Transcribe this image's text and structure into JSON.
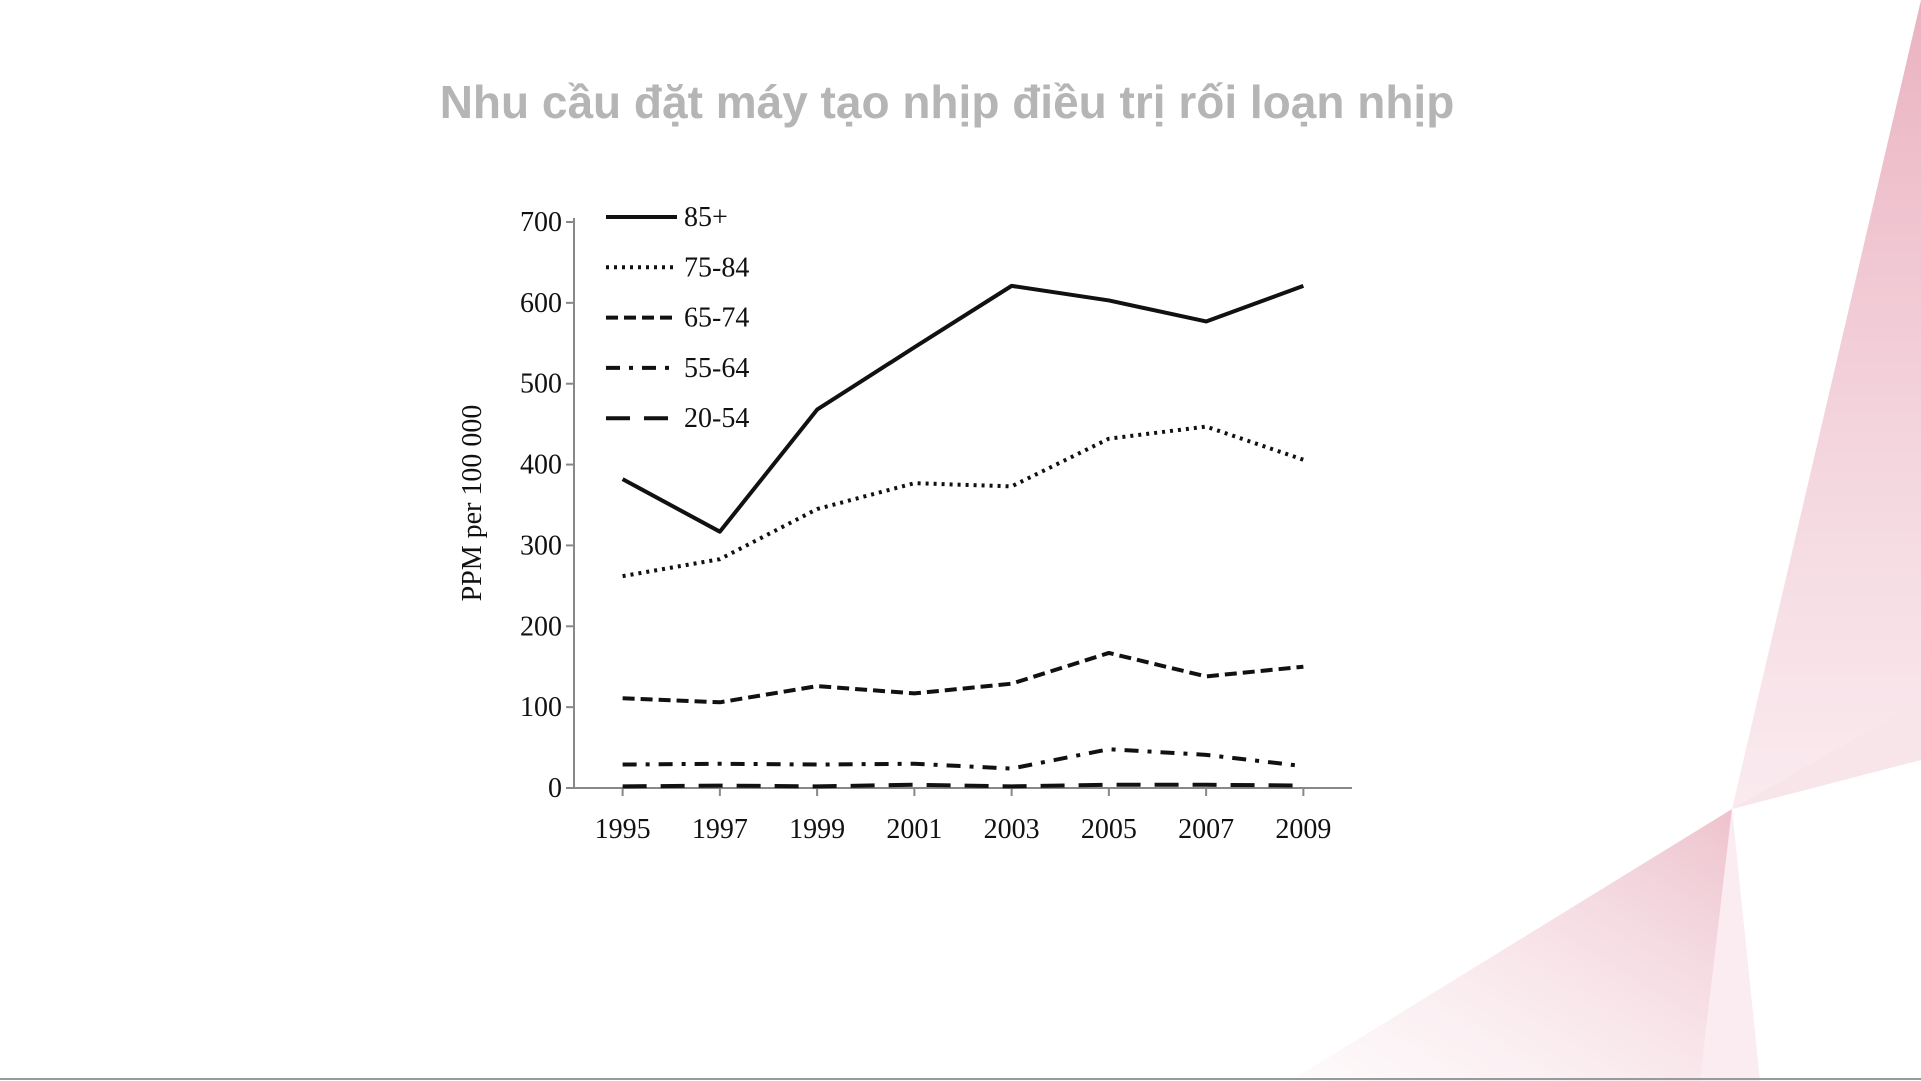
{
  "title": "Nhu cầu đặt máy tạo nhịp điều trị rối loạn nhịp",
  "chart_data": {
    "type": "line",
    "ylabel": "PPM per 100 000",
    "x": [
      1995,
      1997,
      1999,
      2001,
      2003,
      2005,
      2007,
      2009
    ],
    "xlim": [
      1994,
      2010
    ],
    "xticks": [
      1995,
      1997,
      1999,
      2001,
      2003,
      2005,
      2007,
      2009
    ],
    "ylim": [
      0,
      700
    ],
    "yticks": [
      0,
      100,
      200,
      300,
      400,
      500,
      600,
      700
    ],
    "series": [
      {
        "name": "85+",
        "color": "#111111",
        "dash": "solid",
        "values": [
          382,
          317,
          468,
          545,
          621,
          603,
          577,
          621
        ]
      },
      {
        "name": "75-84",
        "color": "#111111",
        "dash": "dotted",
        "values": [
          262,
          283,
          345,
          377,
          373,
          432,
          447,
          406
        ]
      },
      {
        "name": "65-74",
        "color": "#111111",
        "dash": "dashed",
        "values": [
          111,
          106,
          126,
          117,
          129,
          167,
          138,
          150
        ]
      },
      {
        "name": "55-64",
        "color": "#111111",
        "dash": "dashdot",
        "values": [
          29,
          30,
          29,
          30,
          24,
          48,
          41,
          27
        ]
      },
      {
        "name": "20-54",
        "color": "#111111",
        "dash": "longdash",
        "values": [
          2,
          3,
          2,
          4,
          2,
          4,
          4,
          3
        ]
      }
    ]
  }
}
